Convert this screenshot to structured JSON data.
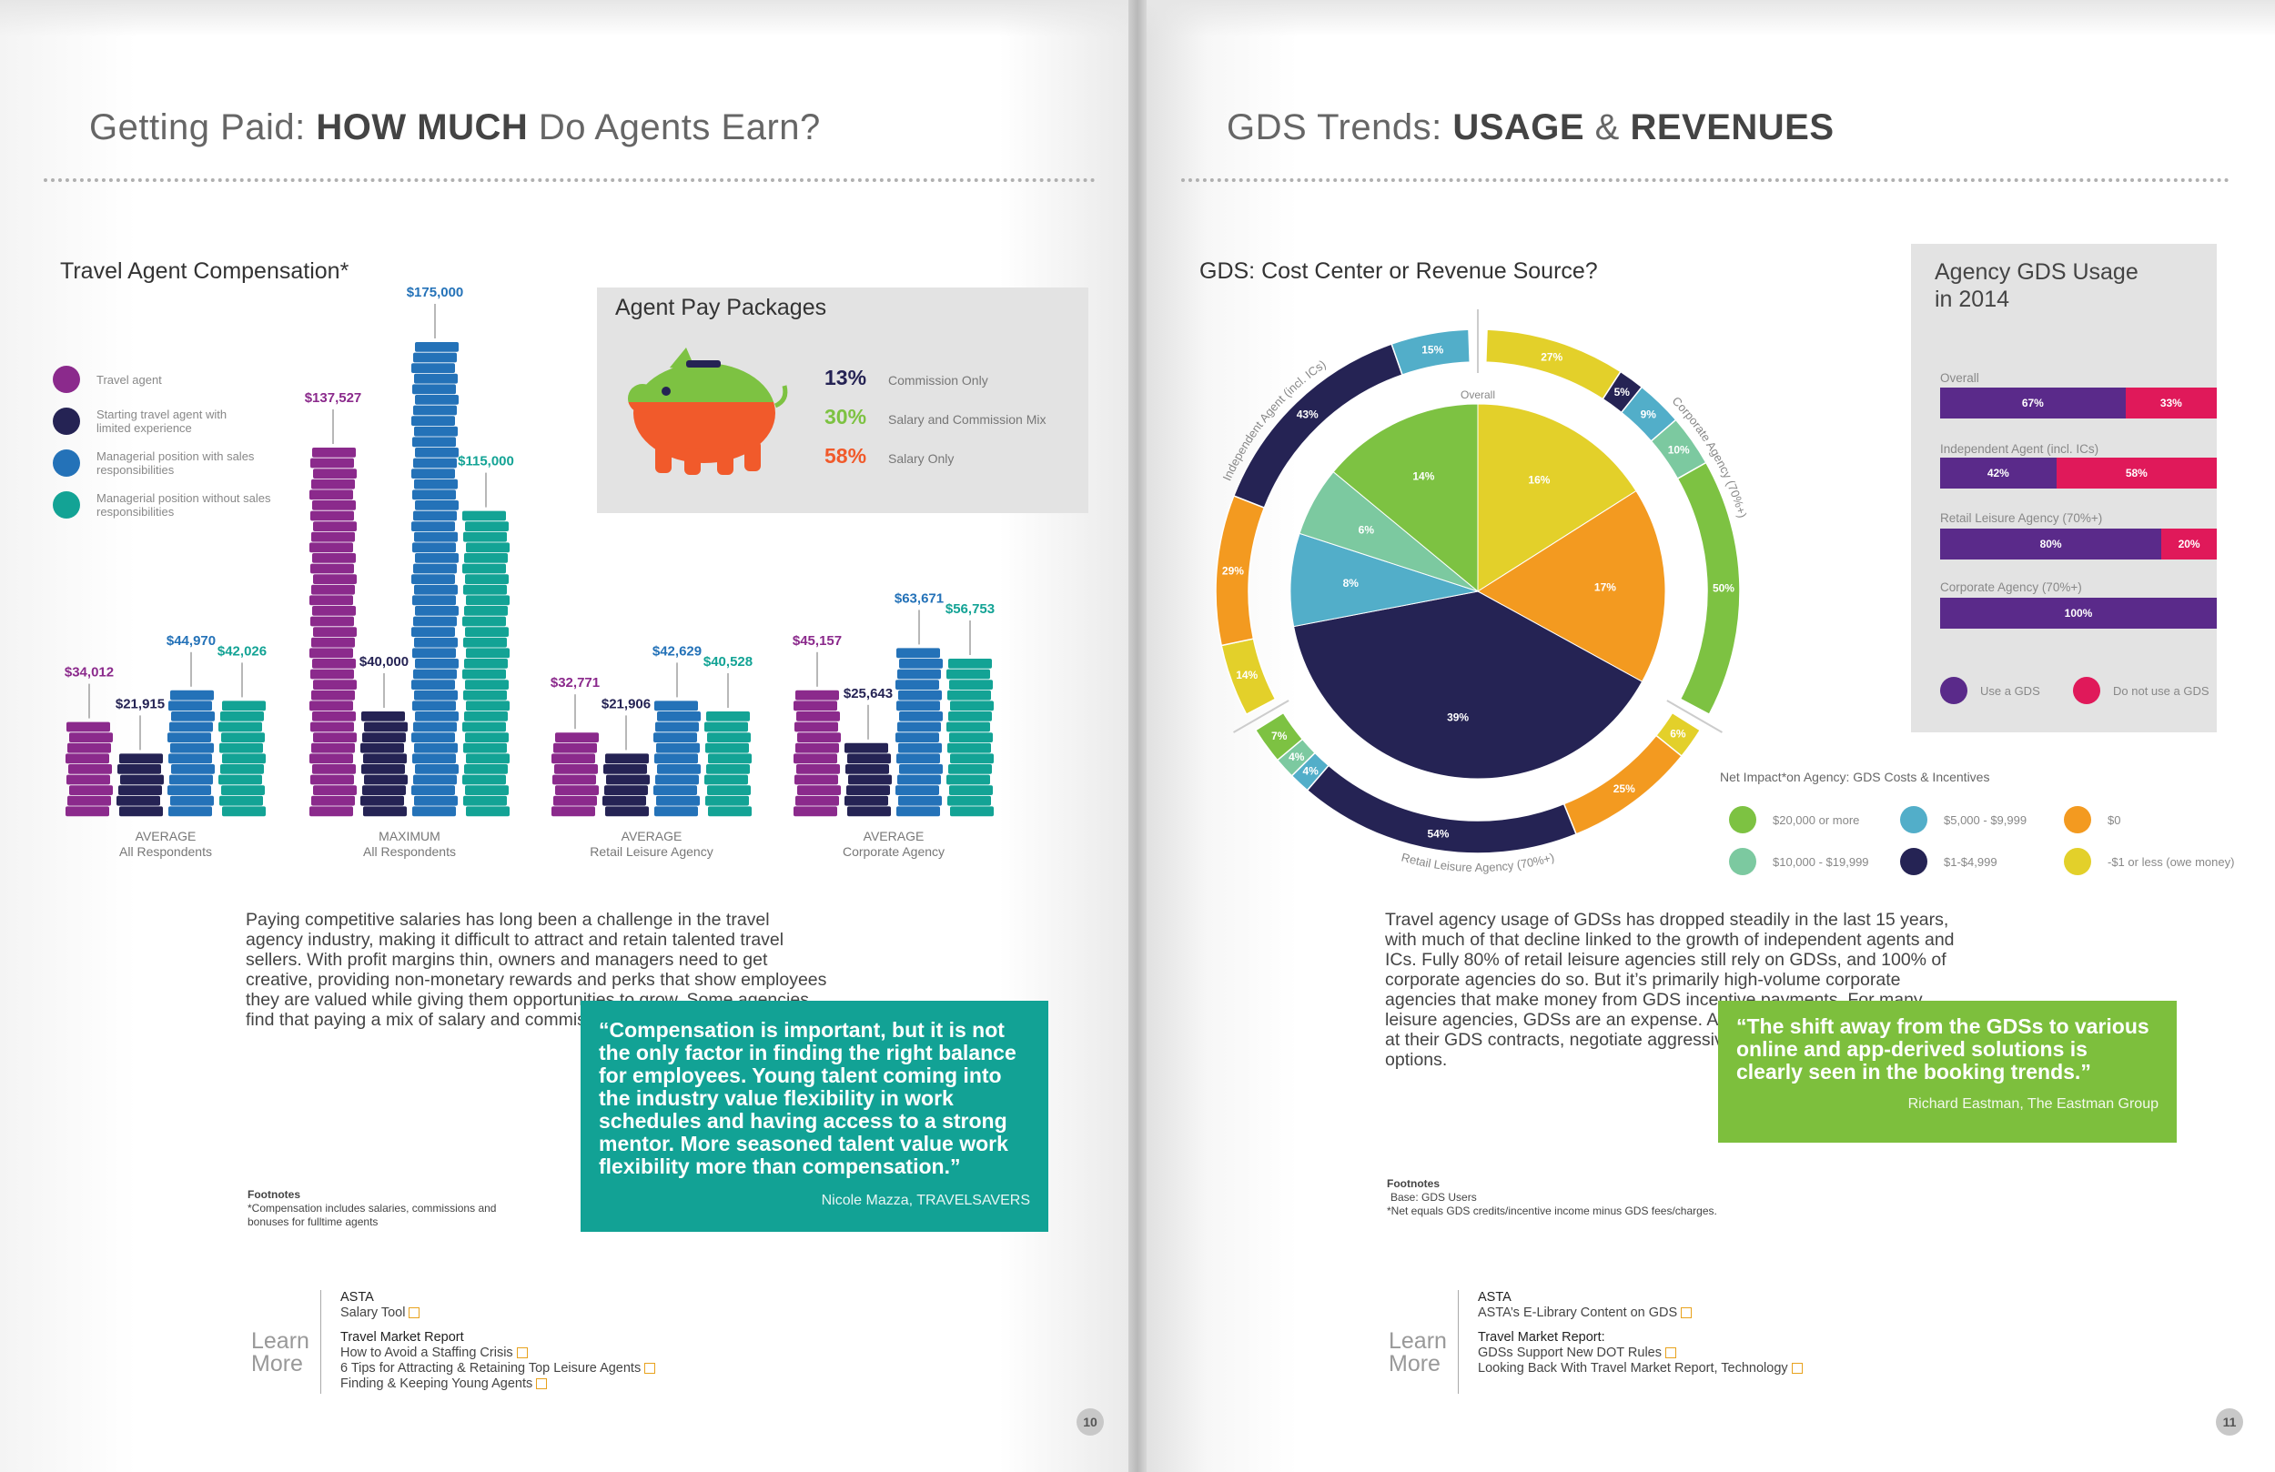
{
  "left": {
    "title_prefix": "Getting Paid: ",
    "title_bold1": "HOW MUCH",
    "title_suffix": " Do Agents Earn?",
    "compensation_title": "Travel Agent Compensation*",
    "legend": [
      {
        "label": "Travel agent",
        "color": "#8b2a8c"
      },
      {
        "label": "Starting travel agent with limited experience",
        "color": "#252354"
      },
      {
        "label": "Managerial position with sales responsibilities",
        "color": "#2472b8"
      },
      {
        "label": "Managerial position without sales responsibilities",
        "color": "#13a395"
      }
    ],
    "pay_packages": {
      "title": "Agent Pay Packages",
      "items": [
        {
          "pct": "13%",
          "label": "Commission Only",
          "color": "#252354"
        },
        {
          "pct": "30%",
          "label": "Salary and Commission Mix",
          "color": "#7dc242"
        },
        {
          "pct": "58%",
          "label": "Salary Only",
          "color": "#f15a2b"
        }
      ]
    },
    "body": "Paying competitive salaries has long been a challenge in the travel agency industry, making it difficult to attract and retain talented travel sellers. With profit margins thin, owners and managers need to get creative, providing non-monetary rewards and perks that show employees they are valued while giving them opportunities to grow. Some agencies find that paying a mix of salary and commission is the best solution.",
    "quote": "“Compensation is important, but it is not the only factor in finding the right balance for employees. Young talent coming into the industry value flexibility in work schedules and having access to a strong mentor. More seasoned talent value work flexibility more than compensation.”",
    "quote_attr": "Nicole Mazza, TRAVELSAVERS",
    "footnote_title": "Footnotes",
    "footnote_text": "*Compensation includes salaries, commissions and bonuses for fulltime agents",
    "learn_more_1": "Learn",
    "learn_more_2": "More",
    "links": {
      "group1": "ASTA",
      "g1_items": [
        "Salary Tool"
      ],
      "group2": "Travel Market Report",
      "g2_items": [
        "How to Avoid a Staffing Crisis",
        "6 Tips for Attracting & Retaining Top Leisure Agents",
        "Finding & Keeping Young Agents"
      ]
    },
    "page_number": "10"
  },
  "right": {
    "title_prefix": "GDS Trends: ",
    "title_bold1": "USAGE",
    "title_mid": " & ",
    "title_bold2": "REVENUES",
    "donut_title": "GDS: Cost Center or Revenue Source?",
    "inner_label": "Overall",
    "ring_labels": {
      "independent": "Independent Agent (incl. ICs)",
      "corporate": "Corporate Agency (70%+)",
      "retail": "Retail Leisure Agency (70%+)"
    },
    "usage": {
      "title_line1": "Agency GDS Usage",
      "title_line2": "in 2014",
      "rows": [
        {
          "label": "Overall",
          "use": "67%",
          "not": "33%"
        },
        {
          "label": "Independent Agent (incl. ICs)",
          "use": "42%",
          "not": "58%"
        },
        {
          "label": "Retail Leisure Agency (70%+)",
          "use": "80%",
          "not": "20%"
        },
        {
          "label": "Corporate Agency (70%+)",
          "use": "100%",
          "not": ""
        }
      ],
      "legend_use": "Use a GDS",
      "legend_not": "Do not use a GDS",
      "color_use": "#5a2a8a",
      "color_not": "#e0195a"
    },
    "net_impact_title": "Net Impact*on Agency: GDS Costs & Incentives",
    "net_legend": [
      {
        "label": "$20,000 or more",
        "color": "#7dc242"
      },
      {
        "label": "$5,000 - $9,999",
        "color": "#52aec9"
      },
      {
        "label": "$0",
        "color": "#f39a20"
      },
      {
        "label": "$10,000 - $19,999",
        "color": "#7cc9a0"
      },
      {
        "label": "$1-$4,999",
        "color": "#252354"
      },
      {
        "label": "-$1 or less (owe money)",
        "color": "#e3d02a"
      }
    ],
    "body": "Travel agency usage of GDSs has dropped steadily in the last 15 years, with much of that decline linked to the growth of independent agents and ICs. Fully 80% of retail leisure agencies still rely on GDSs, and 100% of corporate agencies do so. But it’s primarily high-volume corporate agencies that make money from GDS incentive payments. For many leisure agencies, GDSs are an expense. Agents should take a hard look at their GDS contracts, negotiate aggressively and consider all their options.",
    "quote": "“The shift away from the GDSs to various online and app-derived solutions is clearly seen in the booking trends.”",
    "quote_attr": "Richard Eastman, The Eastman Group",
    "footnote_title": "Footnotes",
    "footnote_line1": "Base: GDS Users",
    "footnote_line2": "*Net equals GDS credits/incentive income minus GDS fees/charges.",
    "learn_more_1": "Learn",
    "learn_more_2": "More",
    "links": {
      "group1": "ASTA",
      "g1_items": [
        "ASTA’s E-Library Content on GDS"
      ],
      "group2": "Travel Market Report:",
      "g2_items": [
        "GDSs Support New DOT Rules",
        "Looking Back With Travel Market Report, Technology"
      ]
    },
    "page_number": "11"
  },
  "chart_data": [
    {
      "type": "bar",
      "title": "Travel Agent Compensation*",
      "categories": [
        "AVERAGE All Respondents",
        "MAXIMUM All Respondents",
        "AVERAGE Retail Leisure Agency",
        "AVERAGE Corporate Agency"
      ],
      "category_lines": [
        [
          "AVERAGE",
          "All Respondents"
        ],
        [
          "MAXIMUM",
          "All Respondents"
        ],
        [
          "AVERAGE",
          "Retail Leisure Agency"
        ],
        [
          "AVERAGE",
          "Corporate Agency"
        ]
      ],
      "series": [
        {
          "name": "Travel agent",
          "color": "#8b2a8c",
          "values": [
            34012,
            137527,
            32771,
            45157
          ],
          "labels": [
            "$34,012",
            "$137,527",
            "$32,771",
            "$45,157"
          ]
        },
        {
          "name": "Starting travel agent with limited experience",
          "color": "#252354",
          "values": [
            21915,
            40000,
            21906,
            25643
          ],
          "labels": [
            "$21,915",
            "$40,000",
            "$21,906",
            "$25,643"
          ]
        },
        {
          "name": "Managerial position with sales responsibilities",
          "color": "#2472b8",
          "values": [
            44970,
            175000,
            42629,
            63671
          ],
          "labels": [
            "$44,970",
            "$175,000",
            "$42,629",
            "$63,671"
          ]
        },
        {
          "name": "Managerial position without sales responsibilities",
          "color": "#13a395",
          "values": [
            42026,
            115000,
            40528,
            56753
          ],
          "labels": [
            "$42,026",
            "$115,000",
            "$40,528",
            "$56,753"
          ]
        }
      ],
      "legend": "left"
    },
    {
      "type": "pie",
      "title": "GDS: Cost Center or Revenue Source?",
      "inner": {
        "name": "Overall",
        "slices": [
          {
            "label": "$20,000 or more",
            "value": 14,
            "text": "14%",
            "color": "#7dc242"
          },
          {
            "label": "$10,000 - $19,999",
            "value": 6,
            "text": "6%",
            "color": "#7cc9a0"
          },
          {
            "label": "$5,000 - $9,999",
            "value": 8,
            "text": "8%",
            "color": "#52aec9"
          },
          {
            "label": "$1-$4,999",
            "value": 39,
            "text": "39%",
            "color": "#252354"
          },
          {
            "label": "$0",
            "value": 17,
            "text": "17%",
            "color": "#f39a20"
          },
          {
            "label": "-$1 or less (owe money)",
            "value": 16,
            "text": "16%",
            "color": "#e3d02a"
          }
        ]
      },
      "ring": [
        {
          "segment": "Corporate Agency (70%+)",
          "slices": [
            {
              "value": 27,
              "text": "27%",
              "color": "#e3d02a"
            },
            {
              "value": 5,
              "text": "5%",
              "color": "#252354"
            },
            {
              "value": 9,
              "text": "9%",
              "color": "#52aec9"
            },
            {
              "value": 10,
              "text": "10%",
              "color": "#7cc9a0"
            },
            {
              "value": 50,
              "text": "50%",
              "color": "#7dc242"
            }
          ]
        },
        {
          "segment": "Retail Leisure Agency (70%+)",
          "slices": [
            {
              "value": 6,
              "text": "6%",
              "color": "#e3d02a"
            },
            {
              "value": 25,
              "text": "25%",
              "color": "#f39a20"
            },
            {
              "value": 54,
              "text": "54%",
              "color": "#252354"
            },
            {
              "value": 4,
              "text": "4%",
              "color": "#52aec9"
            },
            {
              "value": 4,
              "text": "4%",
              "color": "#7cc9a0"
            },
            {
              "value": 7,
              "text": "7%",
              "color": "#7dc242"
            }
          ]
        },
        {
          "segment": "Independent Agent (incl. ICs)",
          "slices": [
            {
              "value": 14,
              "text": "14%",
              "color": "#e3d02a"
            },
            {
              "value": 29,
              "text": "29%",
              "color": "#f39a20"
            },
            {
              "value": 43,
              "text": "43%",
              "color": "#252354"
            },
            {
              "value": 15,
              "text": "15%",
              "color": "#52aec9"
            }
          ]
        }
      ]
    },
    {
      "type": "bar",
      "title": "Agency GDS Usage in 2014",
      "orientation": "horizontal-stacked",
      "categories": [
        "Overall",
        "Independent Agent (incl. ICs)",
        "Retail Leisure Agency (70%+)",
        "Corporate Agency (70%+)"
      ],
      "series": [
        {
          "name": "Use a GDS",
          "values": [
            67,
            42,
            80,
            100
          ]
        },
        {
          "name": "Do not use a GDS",
          "values": [
            33,
            58,
            20,
            0
          ]
        }
      ]
    }
  ]
}
